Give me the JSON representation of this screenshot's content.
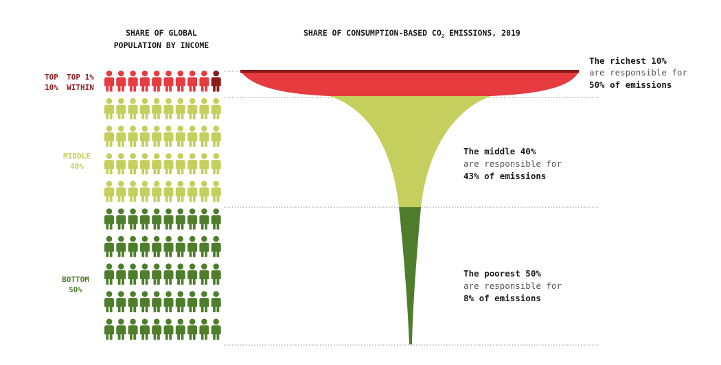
{
  "chart_data": {
    "type": "funnel",
    "population_title_line1": "SHARE OF GLOBAL",
    "population_title_line2": "POPULATION BY INCOME",
    "emissions_title_prefix": "SHARE OF CONSUMPTION-BASED CO",
    "emissions_title_subscript": "2",
    "emissions_title_suffix": " EMISSIONS, 2019",
    "groups": [
      {
        "key": "top10",
        "label_line1": "TOP",
        "label_line2": "10%",
        "sublabel_line1": "TOP 1%",
        "sublabel_line2": "WITHIN",
        "population_share": 10,
        "emissions_share": 50,
        "color": "#e63b3f",
        "highlight_color": "#8b1a1a",
        "note_line1": "The richest 10%",
        "note_line2": "are responsible for",
        "note_line3": "50% of emissions"
      },
      {
        "key": "middle40",
        "label_line1": "MIDDLE",
        "label_line2": "40%",
        "population_share": 40,
        "emissions_share": 43,
        "color": "#c4cf5d",
        "note_line1": "The middle 40%",
        "note_line2": "are responsible for",
        "note_line3": "43% of emissions"
      },
      {
        "key": "bottom50",
        "label_line1": "BOTTOM",
        "label_line2": "50%",
        "population_share": 50,
        "emissions_share": 8,
        "color": "#4e7e2c",
        "note_line1": "The poorest 50%",
        "note_line2": "are responsible for",
        "note_line3": "8% of emissions"
      }
    ],
    "icon_grid": {
      "columns": 10,
      "rows": 10,
      "people_per_icon_percent": 1
    }
  }
}
